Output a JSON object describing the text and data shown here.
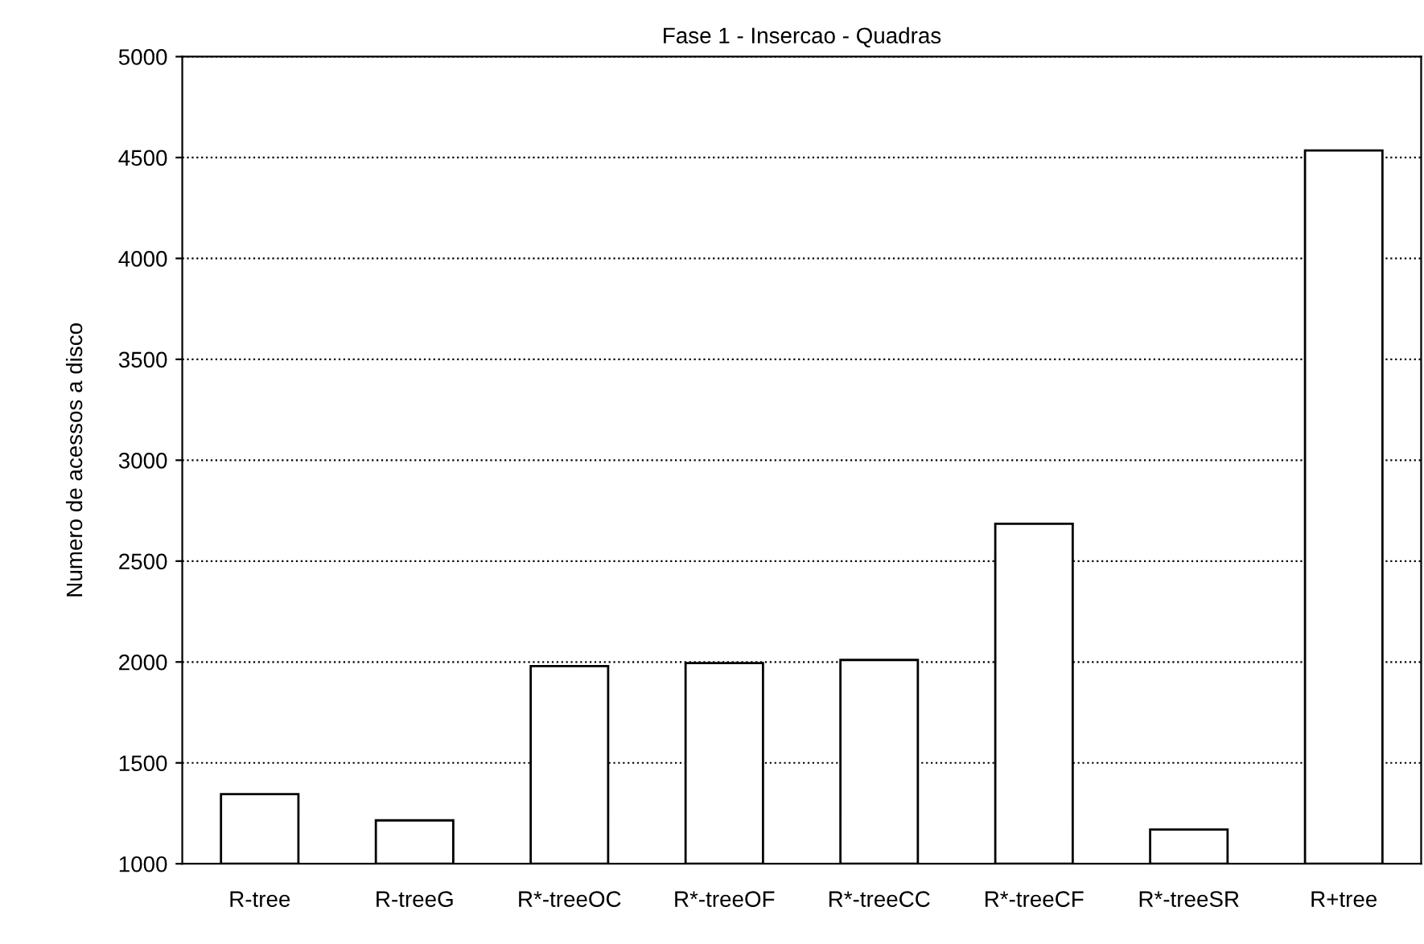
{
  "chart_data": {
    "type": "bar",
    "title": "Fase 1 - Insercao - Quadras",
    "ylabel": "Numero de acessos a disco",
    "categories": [
      "R-tree",
      "R-treeG",
      "R*-treeOC",
      "R*-treeOF",
      "R*-treeCC",
      "R*-treeCF",
      "R*-treeSR",
      "R+tree"
    ],
    "values": [
      1345,
      1215,
      1980,
      1995,
      2010,
      2685,
      1170,
      4535
    ],
    "color": "#ffffff",
    "ylim": [
      1000,
      5000
    ],
    "yticks": [
      1000,
      1500,
      2000,
      2500,
      3000,
      3500,
      4000,
      4500,
      5000
    ],
    "grid": "y"
  }
}
